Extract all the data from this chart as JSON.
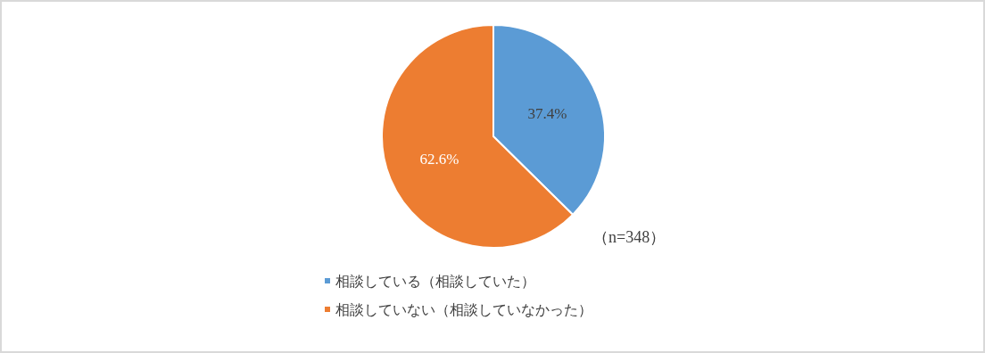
{
  "chart_data": {
    "type": "pie",
    "categories": [
      "相談している（相談していた）",
      "相談していない（相談していなかった）"
    ],
    "values": [
      37.4,
      62.6
    ],
    "colors": [
      "#5b9bd5",
      "#ed7d31"
    ],
    "value_labels": [
      "37.4%",
      "62.6%"
    ],
    "annotations": [
      "（n=348）"
    ],
    "legend": "bottom"
  }
}
